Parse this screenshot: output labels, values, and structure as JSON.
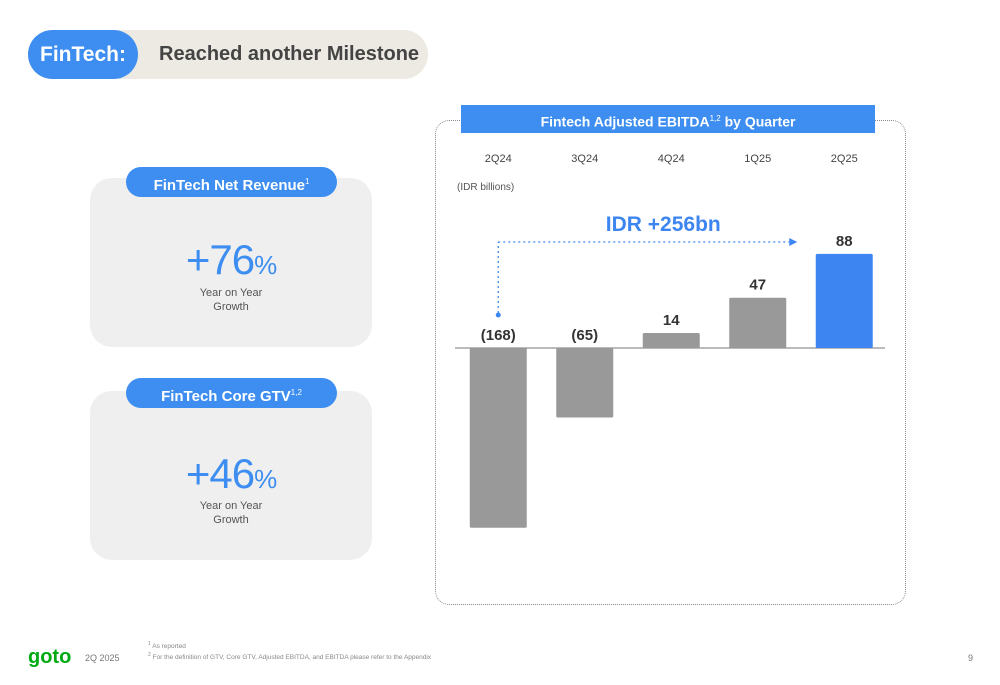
{
  "header": {
    "tag": "FinTech:",
    "title": "Reached another Milestone"
  },
  "kpis": [
    {
      "label": "FinTech Net Revenue",
      "sup": "1",
      "value": "+76",
      "unit": "%",
      "sub1": "Year on Year",
      "sub2": "Growth"
    },
    {
      "label": "FinTech Core GTV",
      "sup": "1,2",
      "value": "+46",
      "unit": "%",
      "sub1": "Year on Year",
      "sub2": "Growth"
    }
  ],
  "chart_title": {
    "text": "Fintech Adjusted EBITDA",
    "sup": "1,2",
    "suffix": " by Quarter"
  },
  "chart_data": {
    "type": "bar",
    "categories": [
      "2Q24",
      "3Q24",
      "4Q24",
      "1Q25",
      "2Q25"
    ],
    "values": [
      -168,
      -65,
      14,
      47,
      88
    ],
    "value_labels": [
      "(168)",
      "(65)",
      "14",
      "47",
      "88"
    ],
    "unit_label": "(IDR billions)",
    "annotation": "IDR +256bn",
    "colors": [
      "#999999",
      "#999999",
      "#999999",
      "#999999",
      "#3d86f2"
    ]
  },
  "footer": {
    "brand": "goto",
    "period": "2Q 2025",
    "note1_num": "1",
    "note1": "As reported",
    "note2_num": "2",
    "note2": "For the definition of GTV, Core GTV, Adjusted EBITDA, and EBITDA please refer to the Appendix",
    "page": "9"
  },
  "colors": {
    "accent": "#3d8ef0",
    "pill_bg": "#eceae2",
    "card_bg": "#efefef",
    "bar_gray": "#999999",
    "logo": "#00aa13"
  }
}
